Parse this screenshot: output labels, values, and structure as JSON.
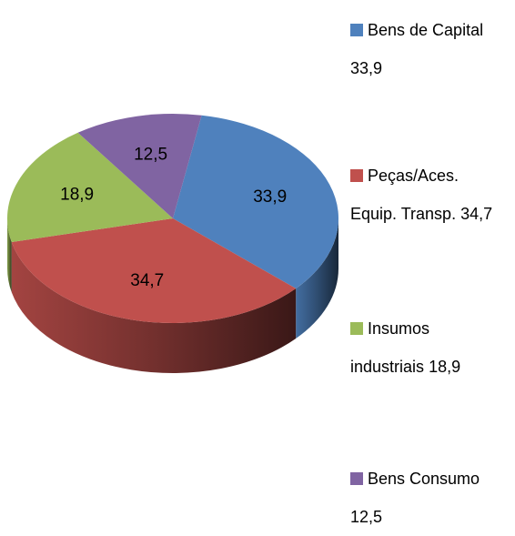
{
  "chart_data": {
    "type": "pie",
    "categories": [
      "Bens de Capital",
      "Peças/Aces. Equip. Transp.",
      "Insumos industriais",
      "Bens Consumo"
    ],
    "values": [
      33.9,
      34.7,
      18.9,
      12.5
    ],
    "value_labels": [
      "33,9",
      "34,7",
      "18,9",
      "12,5"
    ],
    "colors": [
      "#4f81bd",
      "#c0504d",
      "#9bbb59",
      "#8064a2"
    ]
  }
}
